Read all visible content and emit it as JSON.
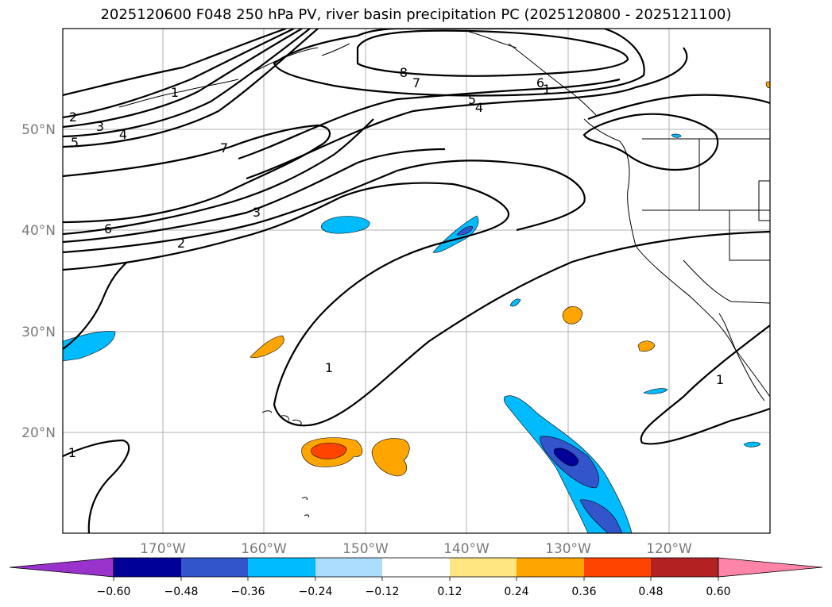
{
  "title": "2025120600 F048 250 hPa PV, river basin precipitation PC (2025120800 - 2025121100)",
  "latitude_labels": [
    "50°N",
    "40°N",
    "30°N",
    "20°N"
  ],
  "longitude_labels": [
    "170°W",
    "160°W",
    "150°W",
    "140°W",
    "130°W",
    "120°W"
  ],
  "contour_labels": [
    "2",
    "3",
    "4",
    "5",
    "7",
    "1",
    "8",
    "7",
    "5",
    "4",
    "6",
    "1",
    "3",
    "2",
    "6",
    "1",
    "1",
    "1"
  ],
  "colorbar": {
    "tick_labels": [
      "−0.60",
      "−0.48",
      "−0.36",
      "−0.24",
      "−0.12",
      "0.12",
      "0.24",
      "0.36",
      "0.48",
      "0.60"
    ],
    "colors": [
      "#9933cc",
      "#000099",
      "#3355cc",
      "#00bbff",
      "#aaddff",
      "#ffffff",
      "#ffe680",
      "#ffa500",
      "#ff4400",
      "#b22222",
      "#ff85a8"
    ]
  },
  "shading_colors": {
    "light_blue": "#00bbff",
    "mid_blue": "#3355cc",
    "dark_blue": "#000099",
    "orange": "#ffa500",
    "red_orange": "#ff4400"
  }
}
